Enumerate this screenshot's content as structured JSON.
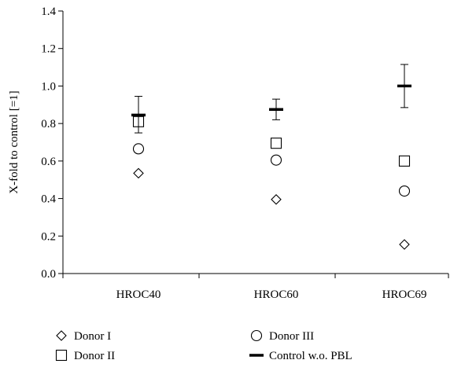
{
  "chart_data": {
    "type": "scatter",
    "ylabel": "X-fold to control [=1]",
    "xlabel": "",
    "ylim": [
      0,
      1.4
    ],
    "yticks": [
      "0.0",
      "0.2",
      "0.4",
      "0.6",
      "0.8",
      "1.0",
      "1.2",
      "1.4"
    ],
    "categories": [
      "HROC40",
      "HROC60",
      "HROC69"
    ],
    "series": [
      {
        "name": "Donor I",
        "marker": "diamond",
        "values": [
          0.535,
          0.395,
          0.155
        ]
      },
      {
        "name": "Donor II",
        "marker": "square",
        "values": [
          0.81,
          0.695,
          0.6
        ]
      },
      {
        "name": "Donor III",
        "marker": "circle",
        "values": [
          0.665,
          0.605,
          0.44
        ]
      },
      {
        "name": "Control w.o. PBL",
        "marker": "bar",
        "values": [
          0.845,
          0.875,
          1.0
        ],
        "error": [
          [
            0.75,
            0.945
          ],
          [
            0.82,
            0.93
          ],
          [
            0.885,
            1.115
          ]
        ]
      }
    ],
    "legend": {
      "placement": "bottom",
      "columns": [
        [
          "Donor I",
          "Donor II"
        ],
        [
          "Donor III",
          "Control w.o. PBL"
        ]
      ]
    },
    "grid": false,
    "colors": {
      "marker": "#000000",
      "axis": "#000000"
    }
  }
}
